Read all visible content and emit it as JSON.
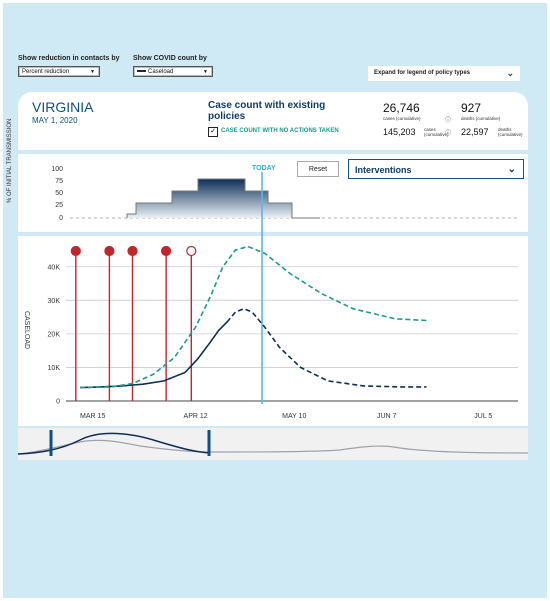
{
  "controls": {
    "reduction_label": "Show reduction in contacts by",
    "reduction_value": "Percent reduction",
    "covid_label": "Show COVID count by",
    "covid_value": "Caseload",
    "legend_label": "Expand for legend of policy types"
  },
  "header": {
    "state": "VIRGINIA",
    "date": "MAY 1, 2020",
    "case_title": "Case count with existing policies",
    "no_action_label": "CASE COUNT WITH NO ACTIONS TAKEN",
    "cases": "26,746",
    "cases_label": "cases (cumulative)",
    "deaths": "927",
    "deaths_label": "deaths (cumulative)",
    "na_cases": "145,203",
    "na_cases_label": "cases (cumulative)",
    "na_deaths": "22,597",
    "na_deaths_label": "deaths (cumulative)"
  },
  "interventions": {
    "axis_label": "% OF INITIAL TRANSMISSION",
    "today_label": "TODAY",
    "reset_label": "Reset",
    "dropdown_label": "Interventions",
    "y_ticks": [
      "100",
      "75",
      "50",
      "25",
      "0"
    ]
  },
  "chart_data": {
    "type": "line",
    "ylabel": "CASELOAD",
    "y_ticks": [
      "40K",
      "30K",
      "20K",
      "10K",
      "0"
    ],
    "x_ticks": [
      "MAR 15",
      "APR 12",
      "MAY 10",
      "JUN 7",
      "JUL 5"
    ],
    "ylim": [
      0,
      45000
    ],
    "series": [
      {
        "style": "solid",
        "color": "#0d2f57",
        "points": [
          [
            0,
            4000
          ],
          [
            10,
            4200
          ],
          [
            20,
            4500
          ],
          [
            30,
            5000
          ],
          [
            40,
            6000
          ],
          [
            50,
            8500
          ],
          [
            56,
            12500
          ],
          [
            62,
            17500
          ],
          [
            66,
            21000
          ],
          [
            70,
            23500
          ]
        ]
      },
      {
        "style": "dashed",
        "color": "#0d2f57",
        "points": [
          [
            70,
            23500
          ],
          [
            74,
            26500
          ],
          [
            78,
            27500
          ],
          [
            82,
            26500
          ],
          [
            88,
            22000
          ],
          [
            95,
            16000
          ],
          [
            105,
            10000
          ],
          [
            118,
            6000
          ],
          [
            135,
            4500
          ],
          [
            152,
            4200
          ],
          [
            165,
            4200
          ]
        ]
      },
      {
        "style": "dashed",
        "color": "#1b9a8a",
        "points": [
          [
            0,
            4000
          ],
          [
            15,
            4200
          ],
          [
            25,
            5200
          ],
          [
            35,
            8000
          ],
          [
            45,
            13000
          ],
          [
            55,
            22000
          ],
          [
            62,
            31000
          ],
          [
            68,
            40000
          ],
          [
            74,
            45000
          ],
          [
            80,
            46000
          ],
          [
            88,
            44000
          ],
          [
            100,
            38000
          ],
          [
            115,
            32000
          ],
          [
            130,
            27500
          ],
          [
            150,
            24500
          ],
          [
            165,
            24000
          ]
        ]
      }
    ],
    "policy_markers": [
      {
        "color": "#c0272d",
        "filled": true
      },
      {
        "color": "#c0272d",
        "filled": true
      },
      {
        "color": "#c0272d",
        "filled": true
      },
      {
        "color": "#c0272d",
        "filled": true
      },
      {
        "color": "#c0272d",
        "filled": false
      }
    ]
  }
}
